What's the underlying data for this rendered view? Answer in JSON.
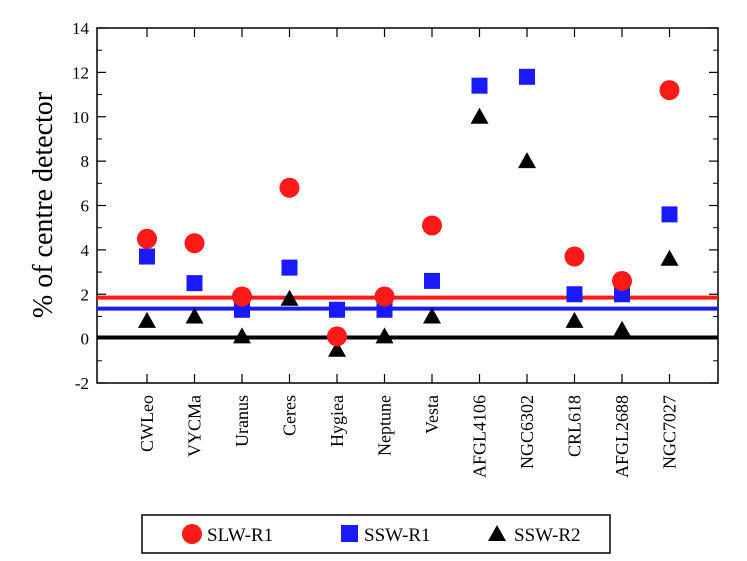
{
  "chart_data": {
    "type": "scatter",
    "title": "",
    "xlabel": "",
    "ylabel": "% of centre detector",
    "ylim": [
      -2,
      14
    ],
    "yticks": [
      -2,
      0,
      2,
      4,
      6,
      8,
      10,
      12,
      14
    ],
    "ytick_labels": [
      "-2",
      "0",
      "2",
      "4",
      "6",
      "8",
      "10",
      "12",
      "14"
    ],
    "categories": [
      "CWLeo",
      "VYCMa",
      "Uranus",
      "Ceres",
      "Hygiea",
      "Neptune",
      "Vesta",
      "AFGL4106",
      "NGC6302",
      "CRL618",
      "AFGL2688",
      "NGC7027"
    ],
    "series": [
      {
        "name": "SLW-R1",
        "marker": "circle",
        "color": "#ff1a1a",
        "values": [
          4.5,
          4.3,
          1.9,
          6.8,
          0.1,
          1.9,
          5.1,
          null,
          null,
          3.7,
          2.6,
          11.2
        ]
      },
      {
        "name": "SSW-R1",
        "marker": "square",
        "color": "#1a1aff",
        "values": [
          3.7,
          2.5,
          1.3,
          3.2,
          1.3,
          1.3,
          2.6,
          11.4,
          11.8,
          2.0,
          2.0,
          5.6
        ]
      },
      {
        "name": "SSW-R2",
        "marker": "triangle",
        "color": "#000000",
        "values": [
          0.8,
          1.0,
          0.1,
          1.8,
          -0.5,
          0.1,
          1.0,
          10.0,
          8.0,
          0.8,
          0.4,
          3.6
        ]
      }
    ],
    "reference_lines": [
      {
        "name": "SLW-R1 mean",
        "y": 1.85,
        "color": "#ff1a1a"
      },
      {
        "name": "SSW-R1 mean",
        "y": 1.35,
        "color": "#1a1aff"
      },
      {
        "name": "zero",
        "y": 0.05,
        "color": "#000000"
      }
    ],
    "legend_placement": "bottom-center",
    "grid": false
  }
}
